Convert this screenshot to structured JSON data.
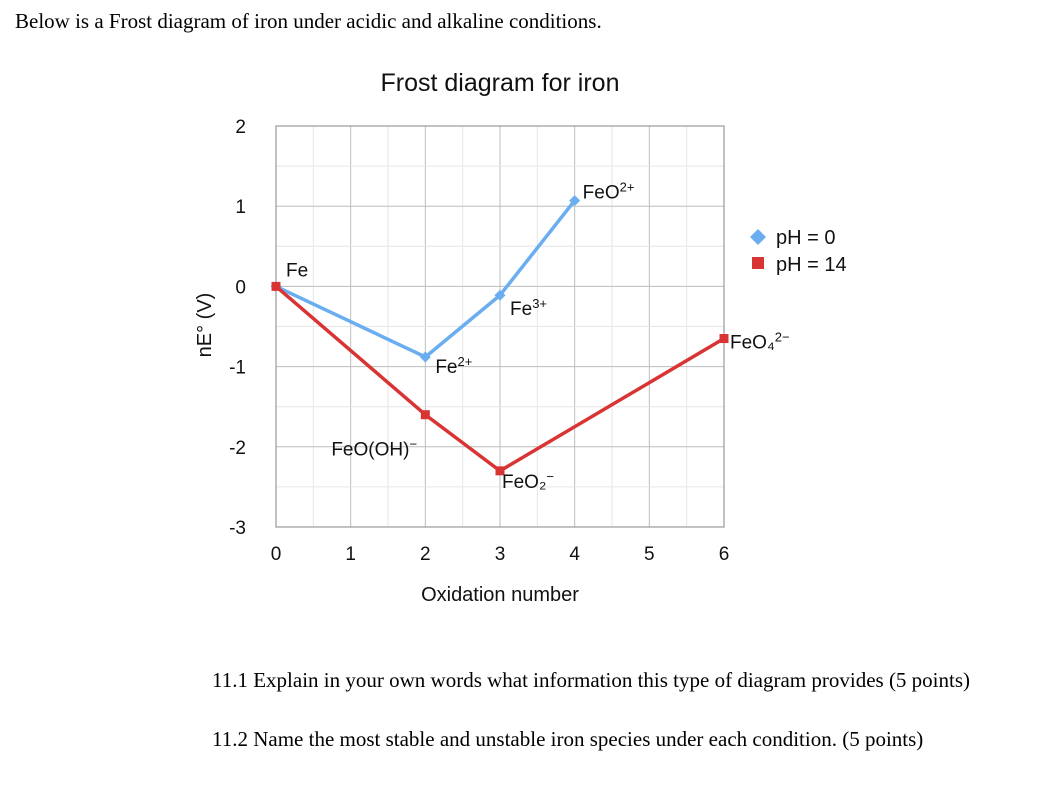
{
  "document": {
    "intro": "Below is a Frost diagram of iron under acidic and alkaline conditions.",
    "questions": [
      "11.1 Explain in your own words what information this type of diagram provides (5 points)",
      "11.2 Name the most stable and unstable iron species under each condition. (5 points)"
    ]
  },
  "chart_data": {
    "type": "line",
    "title": "Frost diagram for iron",
    "xlabel": "Oxidation number",
    "ylabel": "nE° (V)",
    "xlim": [
      0,
      6
    ],
    "ylim": [
      -3,
      2
    ],
    "xticks": [
      "0",
      "1",
      "2",
      "3",
      "4",
      "5",
      "6"
    ],
    "yticks": [
      "2",
      "1",
      "0",
      "-1",
      "-2",
      "-3"
    ],
    "grid": true,
    "legend_position": "right",
    "series": [
      {
        "name": "pH = 0",
        "color": "#6aaef0",
        "marker": "diamond",
        "points": [
          {
            "x": 0,
            "y": 0
          },
          {
            "x": 2,
            "y": -0.88
          },
          {
            "x": 3,
            "y": -0.11
          },
          {
            "x": 4,
            "y": 1.07
          }
        ]
      },
      {
        "name": "pH = 14",
        "color": "#d93434",
        "marker": "square",
        "points": [
          {
            "x": 0,
            "y": 0
          },
          {
            "x": 2,
            "y": -1.6
          },
          {
            "x": 3,
            "y": -2.3
          },
          {
            "x": 6,
            "y": -0.65
          }
        ]
      }
    ],
    "annotations": [
      {
        "base": "Fe",
        "charge": "",
        "x": 0,
        "y": 0
      },
      {
        "base": "Fe",
        "charge": "2+",
        "x": 2,
        "y": -0.88
      },
      {
        "base": "Fe",
        "charge": "3+",
        "x": 3,
        "y": -0.11
      },
      {
        "base": "FeO",
        "charge": "2+",
        "x": 4,
        "y": 1.07
      },
      {
        "base": "FeO(OH)",
        "charge": "−",
        "x": 2,
        "y": -1.6
      },
      {
        "base": "FeO₂",
        "charge": "−",
        "x": 3,
        "y": -2.3
      },
      {
        "base": "FeO₄",
        "charge": "2−",
        "x": 6,
        "y": -0.65
      }
    ]
  }
}
